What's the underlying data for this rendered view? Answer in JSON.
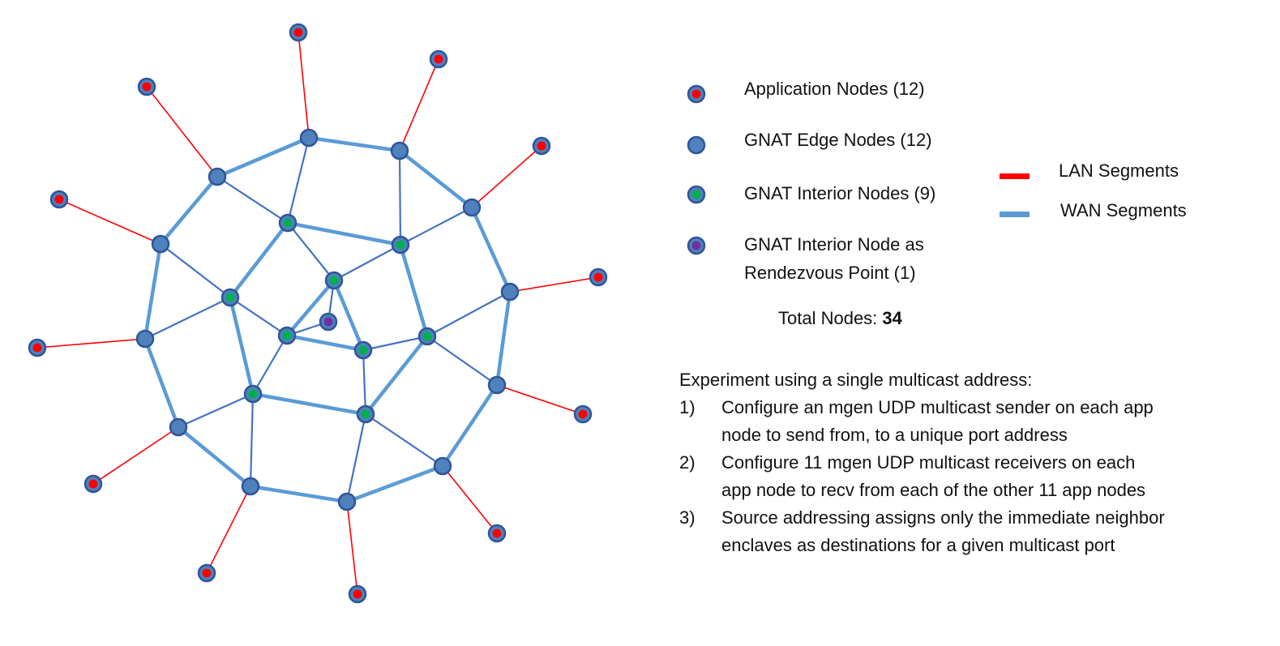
{
  "colors": {
    "lan": "#ff0000",
    "wan": "#5b9bd5",
    "wan_thin": "#4472c4",
    "node_ring": "#2f5597",
    "node_fill": "#4f81bd",
    "app_dot": "#ff0000",
    "interior_dot": "#00b050",
    "rp_dot": "#7030a0"
  },
  "legend": {
    "application_nodes": "Application Nodes (12)",
    "edge_nodes": "GNAT Edge Nodes (12)",
    "interior_nodes": "GNAT Interior Nodes (9)",
    "rp_line1": "GNAT Interior Node as",
    "rp_line2": "Rendezvous Point (1)",
    "lan_segments": "LAN Segments",
    "wan_segments": "WAN Segments"
  },
  "total": {
    "label": "Total Nodes:",
    "value": "34"
  },
  "experiment": {
    "heading": "Experiment using a single multicast address:",
    "steps": [
      {
        "num": "1)",
        "line1": "Configure an mgen UDP multicast  sender on each app",
        "line2": "node to send from, to a unique port address"
      },
      {
        "num": "2)",
        "line1": "Configure 11 mgen UDP multicast receivers on each",
        "line2": "app node to recv from each of the other 11 app nodes"
      },
      {
        "num": "3)",
        "line1": "Source addressing assigns only the immediate neighbor",
        "line2": "enclaves as destinations for a given multicast port"
      }
    ]
  }
}
